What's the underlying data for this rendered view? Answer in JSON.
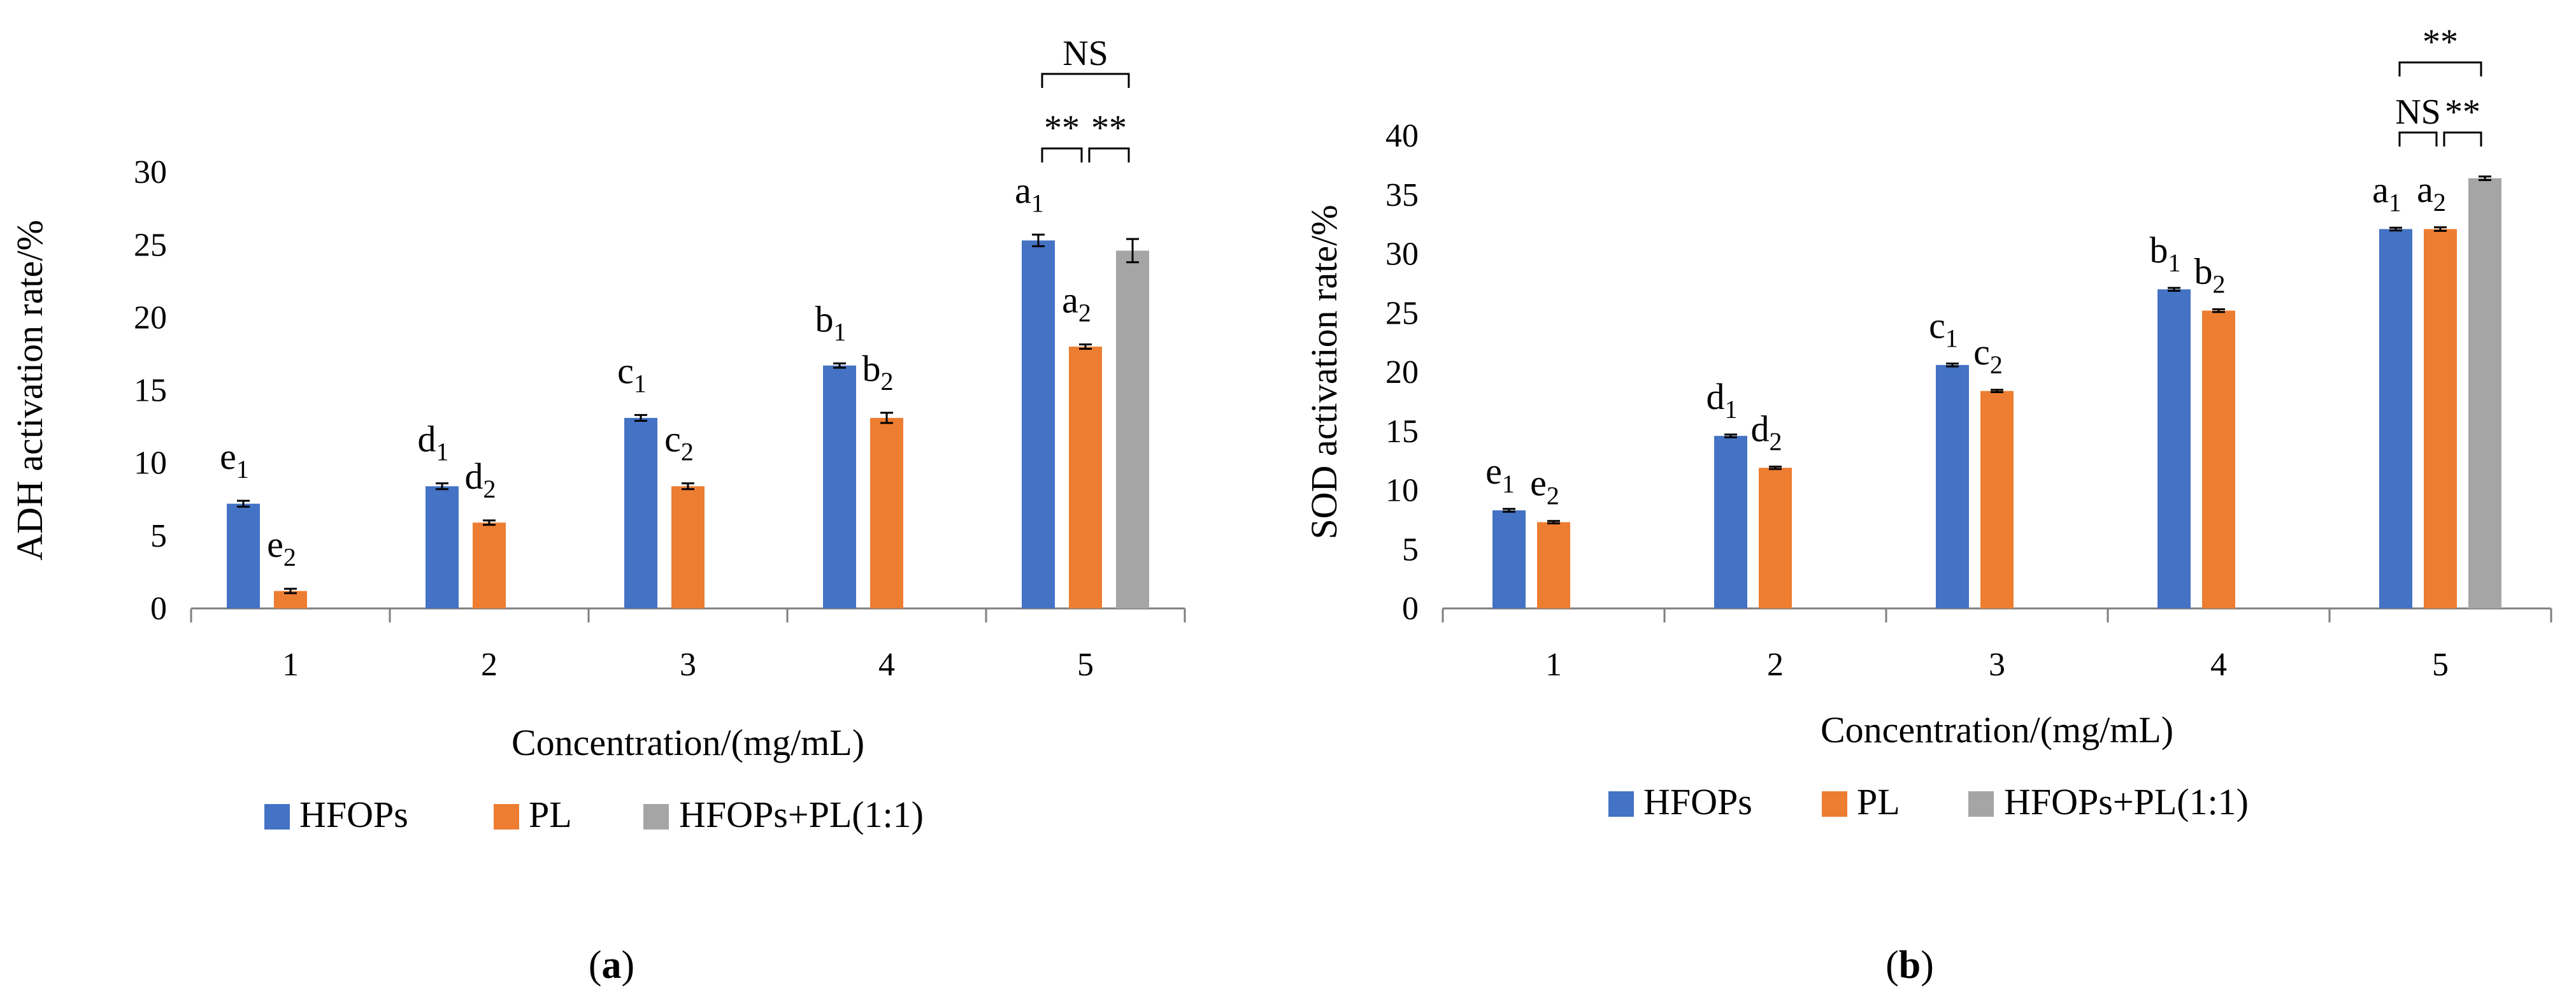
{
  "chart_data": [
    {
      "type": "bar",
      "panel": "(a)",
      "panel_letter": "a",
      "title": "",
      "xlabel": "Concentration/(mg/mL)",
      "ylabel": "ADH activation rate/%",
      "ylim": [
        0,
        30
      ],
      "yticks": [
        0,
        5,
        10,
        15,
        20,
        25,
        30
      ],
      "categories": [
        "1",
        "2",
        "3",
        "4",
        "5"
      ],
      "grid": false,
      "legend_position": "bottom",
      "series": [
        {
          "name": "HFOPs",
          "color": "#4472C4",
          "values": [
            7.2,
            8.4,
            13.1,
            16.7,
            25.3
          ],
          "errors": [
            0.2,
            0.2,
            0.2,
            0.15,
            0.4
          ]
        },
        {
          "name": "PL",
          "color": "#ED7D31",
          "values": [
            1.2,
            5.9,
            8.4,
            13.1,
            18.0
          ],
          "errors": [
            0.15,
            0.15,
            0.2,
            0.35,
            0.15
          ]
        },
        {
          "name": "HFOPs+PL(1:1)",
          "color": "#A5A5A5",
          "values": [
            null,
            null,
            null,
            null,
            24.6
          ],
          "errors": [
            null,
            null,
            null,
            null,
            0.8
          ]
        }
      ],
      "letter_labels": [
        {
          "category": "1",
          "series": "HFOPs",
          "letter": "e",
          "sub": "1"
        },
        {
          "category": "1",
          "series": "PL",
          "letter": "e",
          "sub": "2"
        },
        {
          "category": "2",
          "series": "HFOPs",
          "letter": "d",
          "sub": "1"
        },
        {
          "category": "2",
          "series": "PL",
          "letter": "d",
          "sub": "2"
        },
        {
          "category": "3",
          "series": "HFOPs",
          "letter": "c",
          "sub": "1"
        },
        {
          "category": "3",
          "series": "PL",
          "letter": "c",
          "sub": "2"
        },
        {
          "category": "4",
          "series": "HFOPs",
          "letter": "b",
          "sub": "1"
        },
        {
          "category": "4",
          "series": "PL",
          "letter": "b",
          "sub": "2"
        },
        {
          "category": "5",
          "series": "HFOPs",
          "letter": "a",
          "sub": "1"
        },
        {
          "category": "5",
          "series": "PL",
          "letter": "a",
          "sub": "2"
        }
      ],
      "significance": [
        {
          "category": "5",
          "from": "HFOPs",
          "to": "PL",
          "label": "**"
        },
        {
          "category": "5",
          "from": "PL",
          "to": "HFOPs+PL(1:1)",
          "label": "**"
        },
        {
          "category": "5",
          "from": "HFOPs",
          "to": "HFOPs+PL(1:1)",
          "label": "NS"
        }
      ]
    },
    {
      "type": "bar",
      "panel": "(b)",
      "panel_letter": "b",
      "title": "",
      "xlabel": "Concentration/(mg/mL)",
      "ylabel": "SOD activation rate/%",
      "ylim": [
        0,
        40
      ],
      "yticks": [
        0,
        5,
        10,
        15,
        20,
        25,
        30,
        35,
        40
      ],
      "categories": [
        "1",
        "2",
        "3",
        "4",
        "5"
      ],
      "grid": false,
      "legend_position": "bottom",
      "series": [
        {
          "name": "HFOPs",
          "color": "#4472C4",
          "values": [
            8.3,
            14.6,
            20.6,
            27.0,
            32.1
          ],
          "errors": [
            0.12,
            0.12,
            0.12,
            0.12,
            0.12
          ]
        },
        {
          "name": "PL",
          "color": "#ED7D31",
          "values": [
            7.3,
            11.9,
            18.4,
            25.2,
            32.1
          ],
          "errors": [
            0.1,
            0.1,
            0.1,
            0.12,
            0.15
          ]
        },
        {
          "name": "HFOPs+PL(1:1)",
          "color": "#A5A5A5",
          "values": [
            null,
            null,
            null,
            null,
            36.4
          ],
          "errors": [
            null,
            null,
            null,
            null,
            0.15
          ]
        }
      ],
      "letter_labels": [
        {
          "category": "1",
          "series": "HFOPs",
          "letter": "e",
          "sub": "1"
        },
        {
          "category": "1",
          "series": "PL",
          "letter": "e",
          "sub": "2"
        },
        {
          "category": "2",
          "series": "HFOPs",
          "letter": "d",
          "sub": "1"
        },
        {
          "category": "2",
          "series": "PL",
          "letter": "d",
          "sub": "2"
        },
        {
          "category": "3",
          "series": "HFOPs",
          "letter": "c",
          "sub": "1"
        },
        {
          "category": "3",
          "series": "PL",
          "letter": "c",
          "sub": "2"
        },
        {
          "category": "4",
          "series": "HFOPs",
          "letter": "b",
          "sub": "1"
        },
        {
          "category": "4",
          "series": "PL",
          "letter": "b",
          "sub": "2"
        },
        {
          "category": "5",
          "series": "HFOPs",
          "letter": "a",
          "sub": "1"
        },
        {
          "category": "5",
          "series": "PL",
          "letter": "a",
          "sub": "2"
        }
      ],
      "significance": [
        {
          "category": "5",
          "from": "HFOPs",
          "to": "PL",
          "label": "NS"
        },
        {
          "category": "5",
          "from": "PL",
          "to": "HFOPs+PL(1:1)",
          "label": "**"
        },
        {
          "category": "5",
          "from": "HFOPs",
          "to": "HFOPs+PL(1:1)",
          "label": "**"
        }
      ]
    }
  ]
}
